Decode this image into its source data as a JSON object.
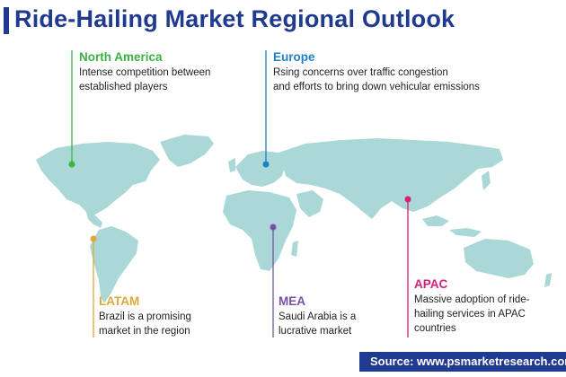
{
  "title": "Ride-Hailing Market Regional Outlook",
  "colors": {
    "title": "#1f3a8f",
    "map": "#a9d8d6",
    "north_america": "#3cb043",
    "europe": "#1f80c8",
    "latam": "#e2a73a",
    "mea": "#7a4fa8",
    "apac": "#d6207a"
  },
  "regions": {
    "north_america": {
      "name": "North America",
      "lines": [
        "Intense competition between",
        "established players"
      ]
    },
    "europe": {
      "name": "Europe",
      "lines": [
        "Rsing concerns over traffic congestion",
        "and efforts to bring down vehicular emissions"
      ]
    },
    "latam": {
      "name": "LATAM",
      "lines": [
        "Brazil is a promising",
        "market in the region"
      ]
    },
    "mea": {
      "name": "MEA",
      "lines": [
        "Saudi Arabia is a",
        "lucrative market"
      ]
    },
    "apac": {
      "name": "APAC",
      "lines": [
        "Massive adoption of ride-",
        "hailing services in APAC",
        "countries"
      ]
    }
  },
  "source": "Source: www.psmarketresearch.com"
}
